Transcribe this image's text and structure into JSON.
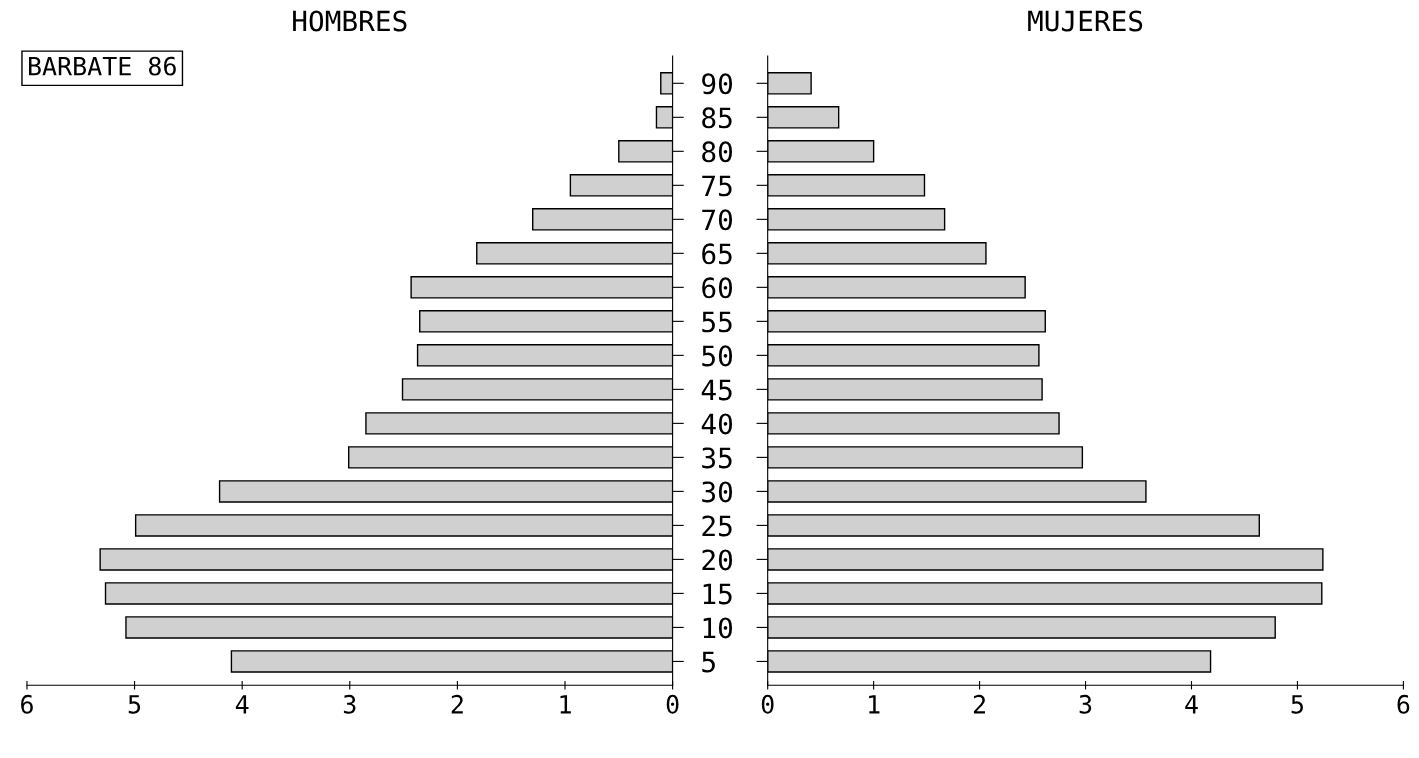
{
  "chart_data": [
    {
      "type": "bar",
      "orientation": "horizontal",
      "title": "HOMBRES",
      "annotations": [
        "BARBATE 86"
      ],
      "categories": [
        "90",
        "85",
        "80",
        "75",
        "70",
        "65",
        "60",
        "55",
        "50",
        "45",
        "40",
        "35",
        "30",
        "25",
        "20",
        "15",
        "10",
        "5"
      ],
      "values": [
        0.11,
        0.15,
        0.5,
        0.95,
        1.3,
        1.82,
        2.43,
        2.35,
        2.37,
        2.51,
        2.85,
        3.01,
        4.21,
        4.99,
        5.32,
        5.27,
        5.08,
        4.1
      ],
      "color": "#d0d0d0",
      "xlim": [
        6,
        0
      ],
      "xticks": [
        6,
        5,
        4,
        3,
        2,
        1,
        0
      ],
      "grid": false,
      "legend": false
    },
    {
      "type": "bar",
      "orientation": "horizontal",
      "title": "MUJERES",
      "tick_labels": "x",
      "categories": [
        "90",
        "85",
        "80",
        "75",
        "70",
        "65",
        "60",
        "55",
        "50",
        "45",
        "40",
        "35",
        "30",
        "25",
        "20",
        "15",
        "10",
        "5"
      ],
      "values": [
        0.41,
        0.67,
        1.0,
        1.48,
        1.67,
        2.06,
        2.43,
        2.62,
        2.56,
        2.59,
        2.75,
        2.97,
        3.57,
        4.64,
        5.24,
        5.23,
        4.79,
        4.18
      ],
      "color": "#d0d0d0",
      "xlim": [
        0,
        6
      ],
      "xticks": [
        0,
        1,
        2,
        3,
        4,
        5,
        6
      ],
      "grid": false,
      "legend": false
    }
  ]
}
